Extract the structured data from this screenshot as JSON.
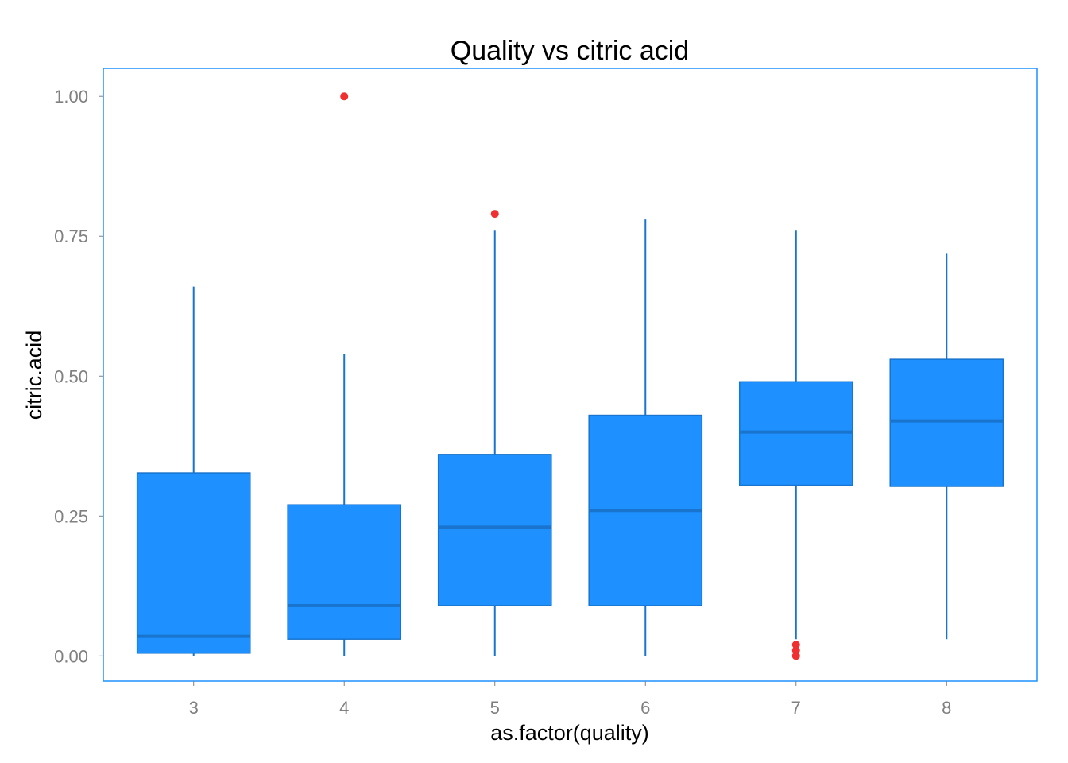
{
  "chart_data": {
    "type": "boxplot",
    "title": "Quality vs citric acid",
    "xlabel": "as.factor(quality)",
    "ylabel": "citric.acid",
    "categories": [
      "3",
      "4",
      "5",
      "6",
      "7",
      "8"
    ],
    "ylim": [
      -0.045,
      1.05
    ],
    "yticks": [
      0,
      0.25,
      0.5,
      0.75,
      1
    ],
    "ytick_labels": [
      "0.00",
      "0.25",
      "0.50",
      "0.75",
      "1.00"
    ],
    "grid": false,
    "legend": "none",
    "boxes": [
      {
        "category": "3",
        "whisker_low": 0.0,
        "q1": 0.005,
        "median": 0.035,
        "q3": 0.327,
        "whisker_high": 0.66,
        "outliers": []
      },
      {
        "category": "4",
        "whisker_low": 0.0,
        "q1": 0.03,
        "median": 0.09,
        "q3": 0.27,
        "whisker_high": 0.54,
        "outliers": [
          1.0
        ]
      },
      {
        "category": "5",
        "whisker_low": 0.0,
        "q1": 0.09,
        "median": 0.23,
        "q3": 0.36,
        "whisker_high": 0.76,
        "outliers": [
          0.79
        ]
      },
      {
        "category": "6",
        "whisker_low": 0.0,
        "q1": 0.09,
        "median": 0.26,
        "q3": 0.43,
        "whisker_high": 0.78,
        "outliers": []
      },
      {
        "category": "7",
        "whisker_low": 0.03,
        "q1": 0.305,
        "median": 0.4,
        "q3": 0.49,
        "whisker_high": 0.76,
        "outliers": [
          0.0,
          0.01,
          0.02
        ]
      },
      {
        "category": "8",
        "whisker_low": 0.03,
        "q1": 0.303,
        "median": 0.42,
        "q3": 0.53,
        "whisker_high": 0.72,
        "outliers": []
      }
    ],
    "colors": {
      "box_fill": "#1E90FF",
      "box_outline": "#1874CD",
      "median": "#1874CD",
      "whisker": "#1874CD",
      "outlier": "#F03030",
      "panel_border": "#1E90FF",
      "tick_label": "#808080"
    }
  }
}
